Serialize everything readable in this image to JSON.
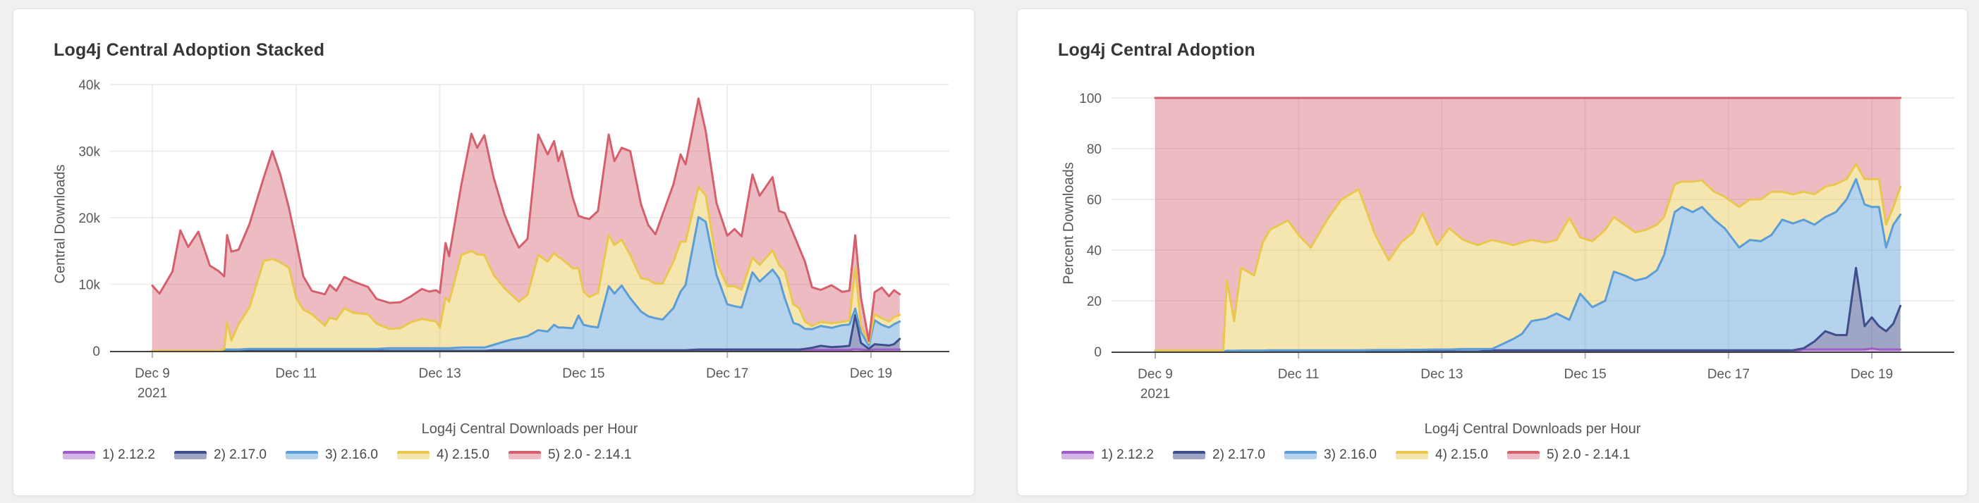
{
  "page": {
    "background_color": "#f0f0f1",
    "card_color": "#ffffff",
    "grid_color": "#ededed",
    "axis_color": "#424242",
    "text_color": "#595959"
  },
  "chart_data": [
    {
      "type": "area",
      "stacked": true,
      "title": "Log4j Central Adoption Stacked",
      "xlabel": "Log4j Central Downloads per Hour",
      "ylabel": "Central Downloads",
      "ylim": [
        0,
        40000
      ],
      "grid": true,
      "legend_position": "bottom",
      "y_ticks": [
        {
          "v": 0,
          "label": "0"
        },
        {
          "v": 10000,
          "label": "10k"
        },
        {
          "v": 20000,
          "label": "20k"
        },
        {
          "v": 30000,
          "label": "30k"
        },
        {
          "v": 40000,
          "label": "40k"
        }
      ],
      "x_ticks": [
        {
          "day": 0,
          "label": "Dec 9",
          "sub": "2021"
        },
        {
          "day": 2,
          "label": "Dec 11"
        },
        {
          "day": 4,
          "label": "Dec 13"
        },
        {
          "day": 6,
          "label": "Dec 15"
        },
        {
          "day": 8,
          "label": "Dec 17"
        },
        {
          "day": 10,
          "label": "Dec 19"
        }
      ],
      "x_unit": "days since Dec 9, 2021",
      "x": [
        0,
        0.1,
        0.28,
        0.39,
        0.5,
        0.64,
        0.8,
        0.92,
        1.0,
        1.04,
        1.1,
        1.2,
        1.35,
        1.55,
        1.67,
        1.78,
        1.9,
        2.0,
        2.1,
        2.22,
        2.4,
        2.47,
        2.56,
        2.67,
        2.8,
        3.0,
        3.12,
        3.3,
        3.45,
        3.6,
        3.75,
        3.85,
        3.95,
        4.0,
        4.08,
        4.13,
        4.3,
        4.44,
        4.52,
        4.62,
        4.75,
        4.9,
        5.0,
        5.1,
        5.22,
        5.37,
        5.5,
        5.59,
        5.65,
        5.7,
        5.85,
        5.93,
        6.0,
        6.08,
        6.2,
        6.35,
        6.43,
        6.53,
        6.65,
        6.8,
        6.9,
        7.0,
        7.1,
        7.25,
        7.35,
        7.42,
        7.6,
        7.7,
        7.85,
        8.0,
        8.1,
        8.2,
        8.35,
        8.45,
        8.63,
        8.72,
        8.8,
        8.92,
        9.0,
        9.08,
        9.18,
        9.3,
        9.45,
        9.6,
        9.7,
        9.78,
        9.86,
        9.97,
        10.05,
        10.15,
        10.25,
        10.32,
        10.4
      ],
      "series": [
        {
          "name": "1) 2.12.2",
          "line": "#a05ac6",
          "fill": "rgba(160,90,198,0.45)",
          "values": [
            0,
            0,
            0,
            0,
            0,
            0,
            0,
            0,
            0,
            0,
            0,
            0,
            0,
            0,
            0,
            0,
            0,
            0,
            0,
            0,
            0,
            0,
            0,
            0,
            0,
            0,
            0,
            0,
            0,
            0,
            0,
            0,
            0,
            0,
            0,
            0,
            0,
            0,
            0,
            0,
            0,
            0,
            0,
            0,
            0,
            0,
            0,
            0,
            0,
            0,
            0,
            0,
            0,
            0,
            0,
            0,
            0,
            0,
            0,
            0,
            0,
            0,
            0,
            0,
            0,
            0,
            0,
            0,
            0,
            0,
            0,
            0,
            0,
            0,
            0,
            0,
            0,
            0,
            0,
            100,
            150,
            150,
            150,
            150,
            150,
            250,
            200,
            100,
            200,
            200,
            200,
            200,
            200
          ]
        },
        {
          "name": "2) 2.17.0",
          "line": "#3f4e8c",
          "fill": "rgba(63,78,140,0.5)",
          "values": [
            0,
            0,
            0,
            0,
            0,
            0,
            0,
            0,
            0,
            0,
            0,
            0,
            0,
            0,
            0,
            0,
            0,
            0,
            0,
            0,
            0,
            0,
            0,
            0,
            0,
            0,
            0,
            0,
            0,
            0,
            0,
            0,
            0,
            0,
            0,
            0,
            0,
            0,
            0,
            0,
            100,
            100,
            100,
            100,
            100,
            100,
            100,
            100,
            100,
            100,
            100,
            100,
            100,
            100,
            100,
            100,
            100,
            100,
            100,
            100,
            100,
            100,
            100,
            100,
            100,
            100,
            200,
            200,
            200,
            200,
            200,
            200,
            200,
            200,
            200,
            200,
            200,
            200,
            200,
            200,
            300,
            600,
            400,
            500,
            600,
            5100,
            1000,
            200,
            800,
            700,
            600,
            800,
            1600
          ]
        },
        {
          "name": "3) 2.16.0",
          "line": "#5b9dd6",
          "fill": "rgba(91,157,214,0.45)",
          "values": [
            0,
            0,
            0,
            0,
            0,
            0,
            0,
            0,
            200,
            200,
            200,
            200,
            300,
            300,
            300,
            300,
            300,
            300,
            300,
            300,
            300,
            300,
            300,
            300,
            300,
            300,
            300,
            400,
            400,
            400,
            400,
            400,
            400,
            400,
            400,
            400,
            500,
            500,
            500,
            500,
            800,
            1300,
            1600,
            1800,
            2100,
            3000,
            2800,
            3800,
            3400,
            3400,
            3300,
            5200,
            3800,
            3600,
            3400,
            9600,
            8500,
            9700,
            7800,
            5800,
            5100,
            4800,
            4600,
            6300,
            8800,
            9800,
            19900,
            19200,
            11200,
            6800,
            6500,
            6300,
            11600,
            10200,
            12000,
            10700,
            7700,
            4000,
            3700,
            3000,
            2800,
            3000,
            2900,
            3200,
            3200,
            1000,
            1600,
            500,
            3600,
            3000,
            2700,
            3000,
            2600
          ]
        },
        {
          "name": "4) 2.15.0",
          "line": "#e9c74e",
          "fill": "rgba(233,199,78,0.45)",
          "values": [
            0,
            0,
            0,
            0,
            0,
            0,
            0,
            0,
            100,
            4100,
            1400,
            3800,
            6200,
            13200,
            13500,
            13000,
            12200,
            7700,
            5900,
            5200,
            3500,
            4700,
            4400,
            6100,
            5400,
            5200,
            3800,
            2900,
            3000,
            3900,
            4400,
            4200,
            4000,
            3100,
            7600,
            7000,
            13900,
            14500,
            14000,
            13900,
            10500,
            8000,
            6700,
            5500,
            6200,
            11300,
            10500,
            10800,
            10600,
            10300,
            9000,
            7100,
            5000,
            4400,
            5200,
            7700,
            7300,
            6900,
            6500,
            5000,
            5500,
            5200,
            5400,
            7000,
            7500,
            6500,
            4500,
            4000,
            2000,
            2700,
            3000,
            2700,
            2200,
            2500,
            2900,
            2000,
            4100,
            2800,
            2500,
            1100,
            500,
            600,
            700,
            500,
            600,
            6200,
            1000,
            400,
            900,
            1000,
            900,
            1100,
            1000
          ]
        },
        {
          "name": "5) 2.0 - 2.14.1",
          "line": "#d5606d",
          "fill": "rgba(213,96,109,0.42)",
          "values": [
            9800,
            8600,
            11900,
            18100,
            15600,
            17900,
            12800,
            12000,
            10900,
            13100,
            13300,
            11200,
            12500,
            12500,
            16200,
            13200,
            9000,
            8500,
            5000,
            3500,
            4700,
            4900,
            4300,
            4700,
            4700,
            4100,
            3700,
            3900,
            3900,
            3900,
            4500,
            4300,
            4700,
            5200,
            8200,
            6800,
            10600,
            17600,
            16000,
            18000,
            14600,
            11100,
            9400,
            8100,
            8400,
            18100,
            16100,
            16800,
            14400,
            16200,
            10600,
            7900,
            11100,
            11700,
            12300,
            15100,
            12600,
            13800,
            15600,
            11100,
            8200,
            7400,
            10400,
            11600,
            13100,
            11600,
            13300,
            9600,
            8800,
            7600,
            8600,
            8000,
            12500,
            10400,
            11000,
            8100,
            8700,
            10600,
            9100,
            9000,
            5800,
            4800,
            5700,
            4500,
            4500,
            4800,
            4200,
            300,
            3300,
            4600,
            3800,
            4000,
            3100
          ]
        }
      ]
    },
    {
      "type": "area",
      "stacked": true,
      "title": "Log4j Central Adoption",
      "xlabel": "Log4j Central Downloads per Hour",
      "ylabel": "Percent Downloads",
      "ylim": [
        0,
        100
      ],
      "grid": true,
      "legend_position": "bottom",
      "y_ticks": [
        {
          "v": 0,
          "label": "0"
        },
        {
          "v": 20,
          "label": "20"
        },
        {
          "v": 40,
          "label": "40"
        },
        {
          "v": 60,
          "label": "60"
        },
        {
          "v": 80,
          "label": "80"
        },
        {
          "v": 100,
          "label": "100"
        }
      ],
      "x_ticks": [
        {
          "day": 0,
          "label": "Dec 9",
          "sub": "2021"
        },
        {
          "day": 2,
          "label": "Dec 11"
        },
        {
          "day": 4,
          "label": "Dec 13"
        },
        {
          "day": 6,
          "label": "Dec 15"
        },
        {
          "day": 8,
          "label": "Dec 17"
        },
        {
          "day": 10,
          "label": "Dec 19"
        }
      ],
      "x_unit": "days since Dec 9, 2021",
      "x": [
        0,
        0.5,
        0.95,
        1.0,
        1.1,
        1.2,
        1.38,
        1.5,
        1.6,
        1.85,
        2.0,
        2.17,
        2.4,
        2.6,
        2.84,
        3.07,
        3.26,
        3.43,
        3.6,
        3.73,
        3.93,
        4.1,
        4.3,
        4.5,
        4.7,
        4.85,
        5.0,
        5.12,
        5.25,
        5.45,
        5.6,
        5.78,
        5.93,
        6.1,
        6.28,
        6.4,
        6.55,
        6.7,
        6.85,
        7.0,
        7.1,
        7.25,
        7.35,
        7.5,
        7.63,
        7.8,
        7.95,
        8.15,
        8.3,
        8.45,
        8.6,
        8.75,
        8.9,
        9.05,
        9.2,
        9.35,
        9.5,
        9.65,
        9.78,
        9.9,
        10.0,
        10.1,
        10.2,
        10.3,
        10.4
      ],
      "series": [
        {
          "name": "1) 2.12.2",
          "line": "#a05ac6",
          "fill": "rgba(160,90,198,0.45)",
          "values": [
            0,
            0,
            0,
            0,
            0,
            0,
            0,
            0,
            0,
            0,
            0,
            0,
            0,
            0,
            0,
            0,
            0,
            0,
            0,
            0,
            0,
            0,
            0,
            0,
            0,
            0,
            0,
            0,
            0,
            0,
            0,
            0,
            0,
            0,
            0,
            0,
            0,
            0,
            0,
            0,
            0,
            0,
            0,
            0,
            0,
            0,
            0,
            0,
            0,
            0,
            0,
            0,
            0,
            0.8,
            0.8,
            0.8,
            0.8,
            0.8,
            0.8,
            0.8,
            1.2,
            0.8,
            0.8,
            0.8,
            0.8
          ]
        },
        {
          "name": "2) 2.17.0",
          "line": "#3f4e8c",
          "fill": "rgba(63,78,140,0.5)",
          "values": [
            0,
            0,
            0,
            0,
            0,
            0,
            0,
            0,
            0,
            0,
            0,
            0,
            0,
            0,
            0,
            0,
            0,
            0,
            0,
            0,
            0,
            0,
            0,
            0,
            0.5,
            0.5,
            0.5,
            0.5,
            0.5,
            0.5,
            0.5,
            0.5,
            0.5,
            0.5,
            0.5,
            0.5,
            0.5,
            0.5,
            0.5,
            0.5,
            0.5,
            0.5,
            0.5,
            0.5,
            0.5,
            0.5,
            0.5,
            0.5,
            0.5,
            0.5,
            0.5,
            0.5,
            0.5,
            0.5,
            3.2,
            7.2,
            5.7,
            5.7,
            32.2,
            9.2,
            12.3,
            9.2,
            7.2,
            10.2,
            17.2
          ]
        },
        {
          "name": "3) 2.16.0",
          "line": "#5b9dd6",
          "fill": "rgba(91,157,214,0.45)",
          "values": [
            0,
            0,
            0,
            0.3,
            0.3,
            0.4,
            0.4,
            0.4,
            0.5,
            0.5,
            0.5,
            0.5,
            0.5,
            0.5,
            0.5,
            0.6,
            0.6,
            0.6,
            0.7,
            0.7,
            0.8,
            0.8,
            1,
            1,
            0.5,
            2.5,
            4.5,
            6.5,
            11.5,
            12.5,
            14.5,
            12,
            22.3,
            17,
            19.5,
            31,
            29.5,
            27.5,
            28.5,
            31.5,
            37.5,
            54.5,
            56.5,
            54.5,
            56.5,
            51.5,
            48,
            40.5,
            43.5,
            43,
            45.5,
            51.5,
            50,
            50.7,
            46,
            45,
            48.5,
            53.5,
            35,
            48,
            43.5,
            47,
            33,
            39,
            36
          ]
        },
        {
          "name": "4) 2.15.0",
          "line": "#e9c74e",
          "fill": "rgba(233,199,78,0.45)",
          "values": [
            0.5,
            0.5,
            0.5,
            27.7,
            11.7,
            32.6,
            29.6,
            42.6,
            47.5,
            51.2,
            45.5,
            40.5,
            51.5,
            59.5,
            63.5,
            45.4,
            35.4,
            42.4,
            46.3,
            53.8,
            41.2,
            47.8,
            43,
            41,
            43,
            40,
            37,
            36,
            32,
            30,
            29,
            40.2,
            22.2,
            26,
            28,
            21.5,
            20,
            19,
            19,
            18,
            15,
            11,
            10,
            12,
            10.5,
            11,
            12.5,
            16,
            16,
            16.5,
            17,
            11,
            11.5,
            11,
            12,
            12,
            11,
            8,
            6,
            10,
            11,
            11,
            9,
            7,
            11
          ]
        },
        {
          "name": "5) 2.0 - 2.14.1",
          "line": "#d5606d",
          "fill": "rgba(213,96,109,0.42)",
          "values": [
            99.5,
            99.5,
            99.5,
            72,
            88,
            67,
            70,
            57,
            52,
            48.3,
            54,
            59,
            48,
            40,
            36,
            54,
            64,
            57,
            53,
            45.5,
            58,
            51.4,
            56,
            58,
            56,
            57,
            58,
            57,
            56,
            57,
            56,
            47.3,
            55,
            56.5,
            52,
            47,
            50,
            53,
            52,
            50,
            47,
            34,
            33,
            33,
            32.5,
            37,
            39,
            43,
            40,
            40,
            37,
            37,
            38,
            37,
            38,
            35,
            34,
            32,
            26,
            32,
            32,
            32,
            50,
            43,
            35
          ]
        }
      ]
    }
  ]
}
